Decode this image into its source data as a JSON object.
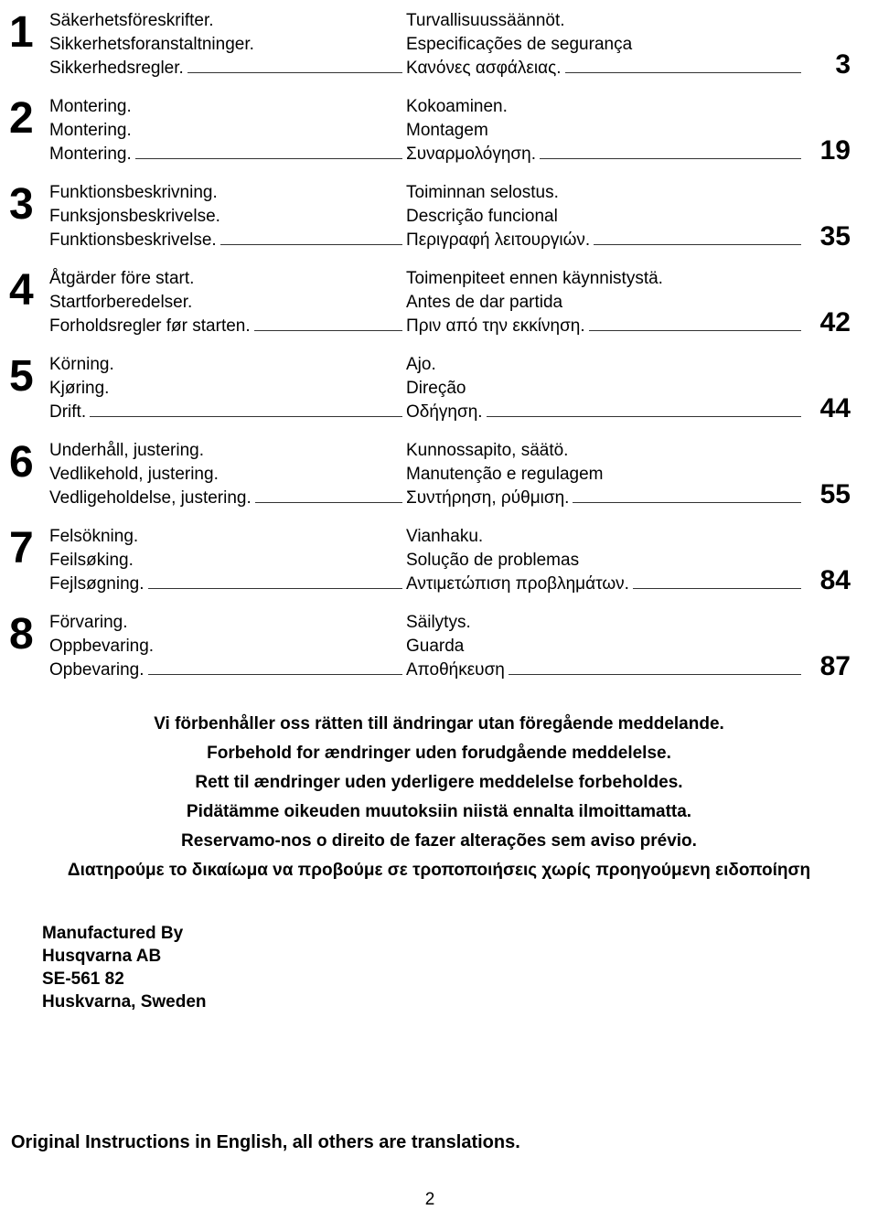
{
  "toc": [
    {
      "num": "1",
      "left": [
        "Säkerhetsföreskrifter.",
        "Sikkerhetsforanstaltninger.",
        "Sikkerhedsregler."
      ],
      "right": [
        "Turvallisuussäännöt.",
        "Especificações de segurança",
        "Κανόνες ασφάλειας."
      ],
      "page": "3"
    },
    {
      "num": "2",
      "left": [
        "Montering.",
        "Montering.",
        "Montering."
      ],
      "right": [
        "Kokoaminen.",
        "Montagem",
        "Συναρμολόγηση."
      ],
      "page": "19"
    },
    {
      "num": "3",
      "left": [
        "Funktionsbeskrivning.",
        "Funksjonsbeskrivelse.",
        "Funktionsbeskrivelse."
      ],
      "right": [
        "Toiminnan selostus.",
        "Descrição funcional",
        "Περιγραφή λειτουργιών."
      ],
      "page": "35"
    },
    {
      "num": "4",
      "left": [
        "Åtgärder före start.",
        "Startforberedelser.",
        "Forholdsregler før starten."
      ],
      "right": [
        "Toimenpiteet ennen käynnistystä.",
        "Antes de dar partida",
        "Πριν από την εκκίνηση."
      ],
      "page": "42"
    },
    {
      "num": "5",
      "left": [
        "Körning.",
        "Kjøring.",
        "Drift."
      ],
      "right": [
        "Ajo.",
        "Direção",
        "Οδήγηση."
      ],
      "page": "44"
    },
    {
      "num": "6",
      "left": [
        "Underhåll, justering.",
        "Vedlikehold, justering.",
        "Vedligeholdelse, justering."
      ],
      "right": [
        "Kunnossapito, säätö.",
        "Manutenção e regulagem",
        "Συντήρηση, ρύθμιση."
      ],
      "page": "55"
    },
    {
      "num": "7",
      "left": [
        "Felsökning.",
        "Feilsøking.",
        "Fejlsøgning."
      ],
      "right": [
        "Vianhaku.",
        "Solução de problemas",
        "Αντιμετώπιση προβλημάτων."
      ],
      "page": "84"
    },
    {
      "num": "8",
      "left": [
        "Förvaring.",
        "Oppbevaring.",
        "Opbevaring."
      ],
      "right": [
        "Säilytys.",
        "Guarda",
        "Αποθήκευση"
      ],
      "page": "87"
    }
  ],
  "notes": [
    "Vi  förbenhåller oss rätten till ändringar utan föregående meddelande.",
    "Forbehold for ændringer uden forudgående meddelelse.",
    "Rett til ændringer uden yderligere meddelelse forbeholdes.",
    "Pidätämme oikeuden muutoksiin niistä ennalta ilmoittamatta.",
    "Reservamo-nos o direito de fazer alterações sem aviso prévio.",
    "Διατηρούμε το δικαίωμα να προβούμε σε τροποποιήσεις χωρίς προηγούμενη ειδοποίηση"
  ],
  "mfg": [
    "Manufactured By",
    "Husqvarna AB",
    "SE-561 82",
    "Huskvarna, Sweden"
  ],
  "footerNote": "Original Instructions in English, all others are translations.",
  "pageNum": "2"
}
